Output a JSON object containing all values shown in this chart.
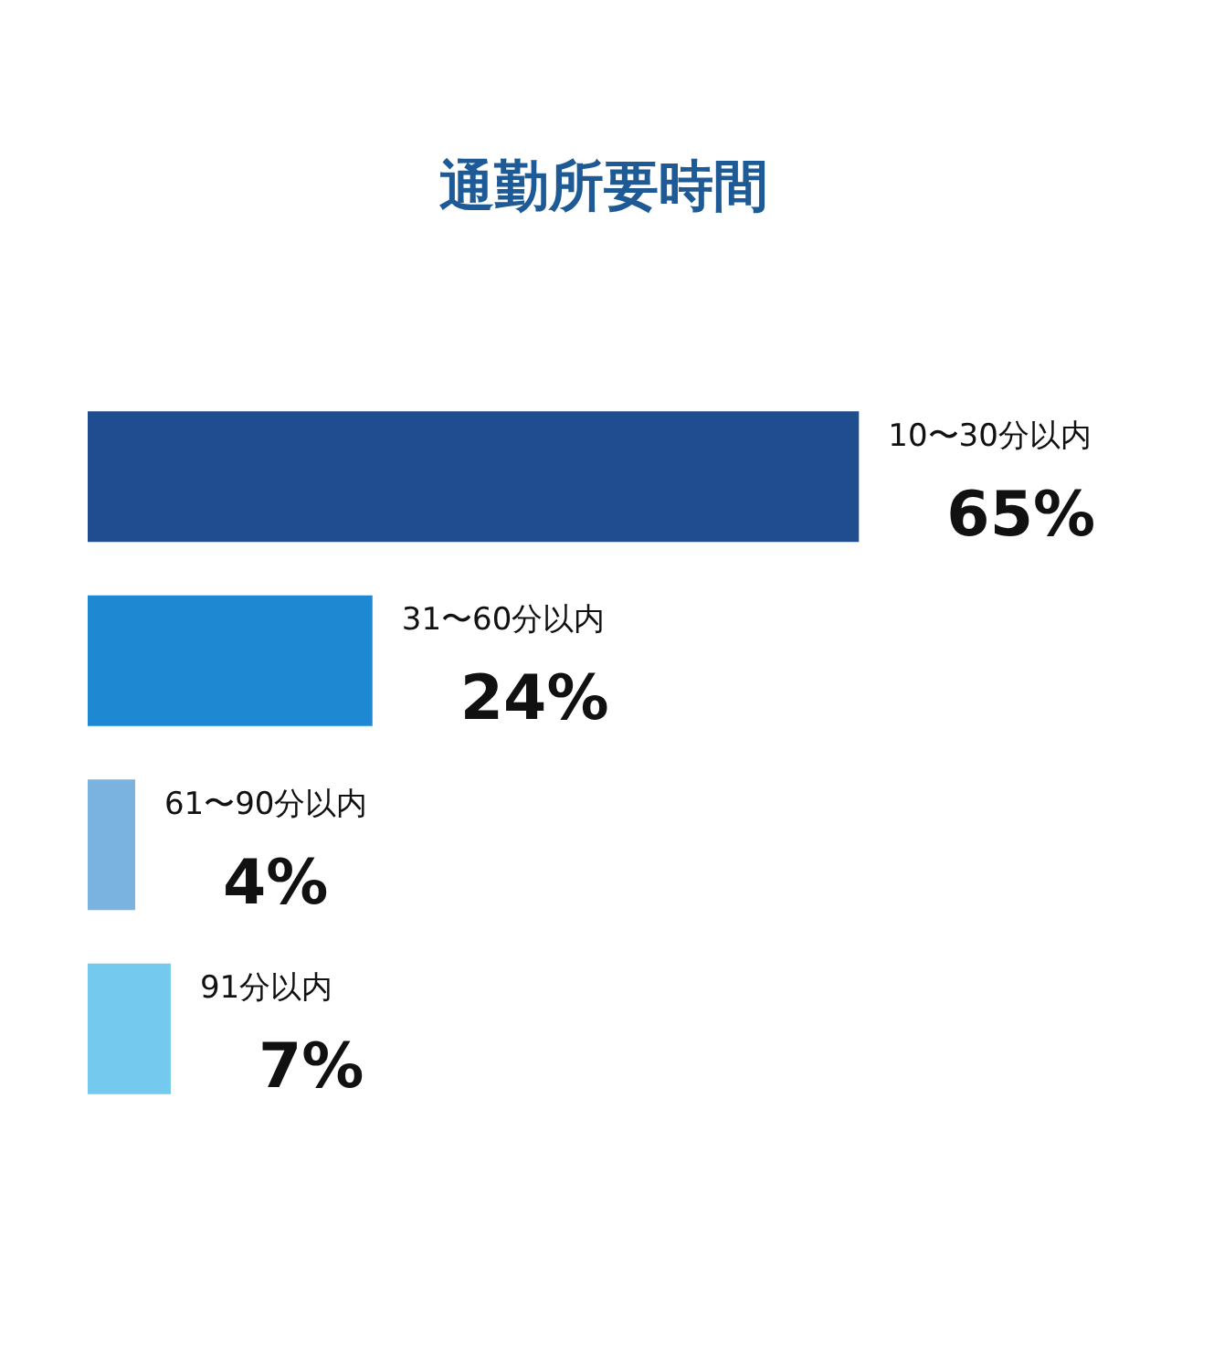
{
  "chart_data": {
    "type": "bar",
    "orientation": "horizontal",
    "title": "通勤所要時間",
    "categories": [
      "10〜30分以内",
      "31〜60分以内",
      "61〜90分以内",
      "91分以内"
    ],
    "values": [
      65,
      24,
      4,
      7
    ],
    "colors": [
      "#1f4d8f",
      "#1e88d3",
      "#7ab3df",
      "#74c9ee"
    ],
    "value_labels": [
      "65%",
      "24%",
      "4%",
      "7%"
    ],
    "xlim": [
      0,
      95
    ],
    "tick_labels": false
  }
}
